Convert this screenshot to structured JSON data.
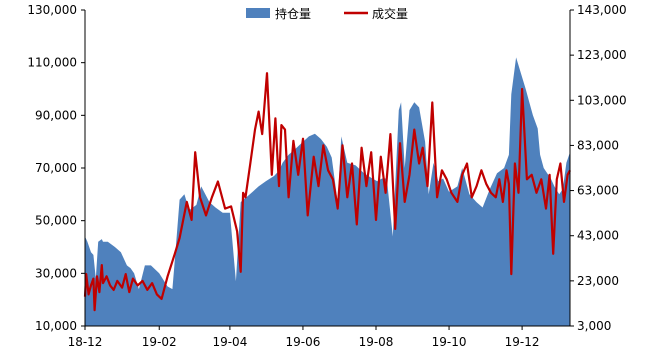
{
  "legend": {
    "open_interest_label": "持仓量",
    "volume_label": "成交量"
  },
  "colors": {
    "open_interest_fill": "#4f81bd",
    "volume_line": "#c00000",
    "axis": "#000000",
    "background": "#ffffff"
  },
  "chart_data": {
    "type": "area",
    "title": "",
    "xlabel": "",
    "ylabel_left": "",
    "ylabel_right": "",
    "grid": false,
    "legend_position": "top-center",
    "x_ticks": [
      "18-12",
      "19-02",
      "19-04",
      "19-06",
      "19-08",
      "19-10",
      "19-12"
    ],
    "x_range": [
      "2018-12-01",
      "2020-01-10"
    ],
    "left_axis": {
      "ylim": [
        10000,
        130000
      ],
      "tick_labels": [
        "10,000",
        "30,000",
        "50,000",
        "70,000",
        "90,000",
        "110,000",
        "130,000"
      ]
    },
    "right_axis": {
      "ylim": [
        3000,
        143000
      ],
      "tick_labels": [
        "3,000",
        "23,000",
        "43,000",
        "63,000",
        "83,000",
        "103,000",
        "123,000",
        "143,000"
      ]
    },
    "series": [
      {
        "name": "持仓量",
        "axis": "left",
        "type": "area",
        "x": [
          "2018-12-01",
          "2018-12-03",
          "2018-12-06",
          "2018-12-08",
          "2018-12-10",
          "2018-12-12",
          "2018-12-15",
          "2018-12-16",
          "2018-12-20",
          "2018-12-26",
          "2018-12-31",
          "2019-01-05",
          "2019-01-08",
          "2019-01-11",
          "2019-01-15",
          "2019-01-20",
          "2019-01-25",
          "2019-02-01",
          "2019-02-08",
          "2019-02-12",
          "2019-02-14",
          "2019-02-18",
          "2019-02-22",
          "2019-02-26",
          "2019-03-04",
          "2019-03-08",
          "2019-03-15",
          "2019-03-20",
          "2019-03-26",
          "2019-04-01",
          "2019-04-06",
          "2019-04-10",
          "2019-04-12",
          "2019-04-15",
          "2019-04-20",
          "2019-04-25",
          "2019-05-01",
          "2019-05-08",
          "2019-05-12",
          "2019-05-15",
          "2019-05-20",
          "2019-05-25",
          "2019-06-01",
          "2019-06-06",
          "2019-06-11",
          "2019-06-16",
          "2019-06-21",
          "2019-06-25",
          "2019-06-30",
          "2019-07-03",
          "2019-07-08",
          "2019-07-15",
          "2019-07-22",
          "2019-07-29",
          "2019-08-02",
          "2019-08-06",
          "2019-08-10",
          "2019-08-15",
          "2019-08-20",
          "2019-08-22",
          "2019-08-25",
          "2019-08-29",
          "2019-09-02",
          "2019-09-06",
          "2019-09-11",
          "2019-09-14",
          "2019-09-18",
          "2019-09-22",
          "2019-09-26",
          "2019-10-01",
          "2019-10-08",
          "2019-10-12",
          "2019-10-18",
          "2019-10-24",
          "2019-10-29",
          "2019-11-04",
          "2019-11-10",
          "2019-11-16",
          "2019-11-20",
          "2019-11-22",
          "2019-11-26",
          "2019-11-30",
          "2019-12-04",
          "2019-12-07",
          "2019-12-10",
          "2019-12-14",
          "2019-12-16",
          "2019-12-19",
          "2019-12-22",
          "2019-12-25",
          "2019-12-28",
          "2020-01-01",
          "2020-01-04",
          "2020-01-07",
          "2020-01-10"
        ],
        "values": [
          44000,
          42000,
          38000,
          37000,
          28000,
          42000,
          43000,
          42000,
          42000,
          40000,
          38000,
          33000,
          32000,
          30000,
          24000,
          33000,
          33000,
          30000,
          25000,
          24000,
          35000,
          58000,
          60000,
          54000,
          56000,
          63000,
          57000,
          55000,
          53000,
          53000,
          27000,
          57000,
          58000,
          59000,
          61000,
          63000,
          65000,
          67000,
          69000,
          72000,
          75000,
          77000,
          80000,
          82000,
          83000,
          81000,
          78000,
          74000,
          57000,
          82000,
          72000,
          71000,
          68000,
          66000,
          65000,
          66000,
          66000,
          44000,
          92000,
          95000,
          70000,
          92000,
          95000,
          93000,
          80000,
          60000,
          72000,
          65000,
          66000,
          61000,
          63000,
          70000,
          60000,
          57000,
          55000,
          62000,
          68000,
          70000,
          75000,
          98000,
          112000,
          106000,
          100000,
          95000,
          90000,
          85000,
          75000,
          70000,
          68000,
          66000,
          63000,
          60000,
          62000,
          72000,
          76000
        ]
      },
      {
        "name": "成交量",
        "axis": "right",
        "type": "line",
        "x": [
          "2018-12-01",
          "2018-12-02",
          "2018-12-04",
          "2018-12-06",
          "2018-12-08",
          "2018-12-09",
          "2018-12-11",
          "2018-12-13",
          "2018-12-15",
          "2018-12-16",
          "2018-12-19",
          "2018-12-22",
          "2018-12-25",
          "2018-12-28",
          "2019-01-01",
          "2019-01-04",
          "2019-01-07",
          "2019-01-10",
          "2019-01-14",
          "2019-01-18",
          "2019-01-22",
          "2019-01-26",
          "2019-01-30",
          "2019-02-03",
          "2019-02-08",
          "2019-02-14",
          "2019-02-18",
          "2019-02-24",
          "2019-02-28",
          "2019-03-03",
          "2019-03-07",
          "2019-03-12",
          "2019-03-17",
          "2019-03-22",
          "2019-03-28",
          "2019-04-02",
          "2019-04-07",
          "2019-04-10",
          "2019-04-12",
          "2019-04-14",
          "2019-04-18",
          "2019-04-22",
          "2019-04-25",
          "2019-04-28",
          "2019-05-02",
          "2019-05-06",
          "2019-05-09",
          "2019-05-12",
          "2019-05-14",
          "2019-05-17",
          "2019-05-20",
          "2019-05-24",
          "2019-05-28",
          "2019-06-01",
          "2019-06-05",
          "2019-06-10",
          "2019-06-14",
          "2019-06-18",
          "2019-06-22",
          "2019-06-26",
          "2019-06-30",
          "2019-07-04",
          "2019-07-08",
          "2019-07-12",
          "2019-07-16",
          "2019-07-20",
          "2019-07-24",
          "2019-07-28",
          "2019-08-01",
          "2019-08-05",
          "2019-08-09",
          "2019-08-13",
          "2019-08-17",
          "2019-08-21",
          "2019-08-25",
          "2019-08-29",
          "2019-09-02",
          "2019-09-06",
          "2019-09-09",
          "2019-09-13",
          "2019-09-17",
          "2019-09-21",
          "2019-09-25",
          "2019-09-29",
          "2019-10-03",
          "2019-10-08",
          "2019-10-12",
          "2019-10-16",
          "2019-10-20",
          "2019-10-24",
          "2019-10-28",
          "2019-11-01",
          "2019-11-05",
          "2019-11-09",
          "2019-11-12",
          "2019-11-15",
          "2019-11-18",
          "2019-11-20",
          "2019-11-22",
          "2019-11-25",
          "2019-11-28",
          "2019-12-01",
          "2019-12-05",
          "2019-12-09",
          "2019-12-13",
          "2019-12-17",
          "2019-12-21",
          "2019-12-24",
          "2019-12-27",
          "2019-12-30",
          "2020-01-02",
          "2020-01-05",
          "2020-01-08",
          "2020-01-10"
        ],
        "values": [
          16000,
          26000,
          17000,
          21000,
          24000,
          10000,
          25000,
          18000,
          30000,
          22000,
          25000,
          21000,
          19000,
          23000,
          20000,
          26000,
          18000,
          24000,
          21000,
          23000,
          19000,
          22000,
          17000,
          15000,
          25000,
          35000,
          42000,
          58000,
          50000,
          80000,
          60000,
          52000,
          60000,
          67000,
          55000,
          56000,
          45000,
          27000,
          62000,
          60000,
          75000,
          90000,
          98000,
          88000,
          115000,
          70000,
          95000,
          65000,
          92000,
          90000,
          60000,
          85000,
          70000,
          86000,
          52000,
          78000,
          65000,
          83000,
          72000,
          68000,
          55000,
          83000,
          60000,
          75000,
          48000,
          82000,
          65000,
          80000,
          50000,
          78000,
          62000,
          88000,
          46000,
          84000,
          58000,
          70000,
          90000,
          75000,
          82000,
          65000,
          102000,
          60000,
          72000,
          68000,
          62000,
          58000,
          70000,
          75000,
          60000,
          65000,
          72000,
          66000,
          62000,
          60000,
          68000,
          58000,
          72000,
          66000,
          26000,
          75000,
          62000,
          108000,
          68000,
          70000,
          62000,
          68000,
          55000,
          70000,
          35000,
          68000,
          75000,
          58000,
          70000,
          72000
        ]
      }
    ]
  }
}
